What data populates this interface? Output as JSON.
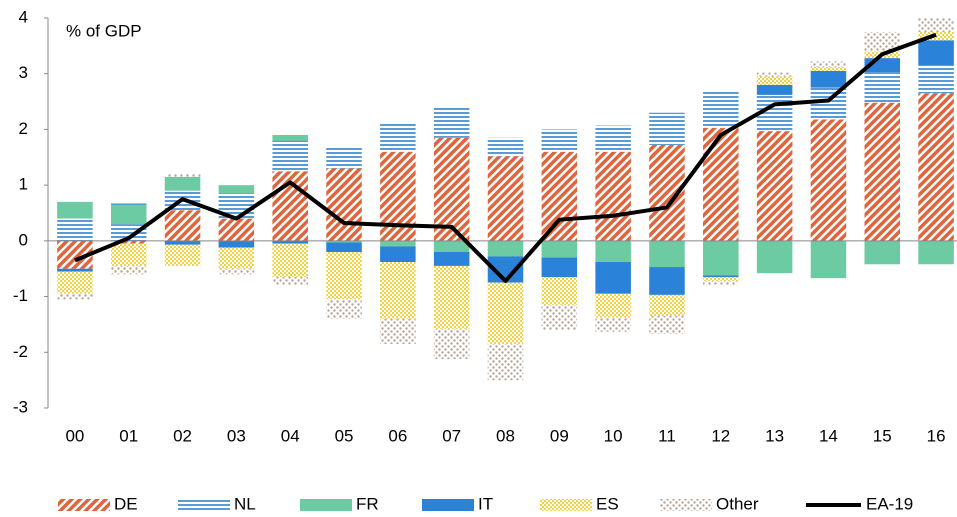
{
  "chart_data": {
    "type": "bar",
    "stacked": true,
    "y_label": "% of GDP",
    "categories": [
      "00",
      "01",
      "02",
      "03",
      "04",
      "05",
      "06",
      "07",
      "08",
      "09",
      "10",
      "11",
      "12",
      "13",
      "14",
      "15",
      "16"
    ],
    "ylim": [
      -3,
      4
    ],
    "yticks": [
      -3,
      -2,
      -1,
      0,
      1,
      2,
      3,
      4
    ],
    "grid": false,
    "series": [
      {
        "name": "DE",
        "color": "#e0643c",
        "pattern": "diagonal",
        "values": [
          -0.5,
          -0.05,
          0.55,
          0.4,
          1.25,
          1.3,
          1.6,
          1.85,
          1.52,
          1.6,
          1.6,
          1.72,
          2.03,
          1.97,
          2.18,
          2.48,
          2.65
        ]
      },
      {
        "name": "NL",
        "color": "#5b9bd5",
        "pattern": "horizontal",
        "values": [
          0.4,
          0.3,
          0.35,
          0.45,
          0.55,
          0.4,
          0.5,
          0.55,
          0.33,
          0.4,
          0.47,
          0.58,
          0.65,
          0.65,
          0.57,
          0.55,
          0.5
        ]
      },
      {
        "name": "FR",
        "color": "#6ccba2",
        "pattern": "solid",
        "values": [
          0.3,
          0.35,
          0.25,
          0.15,
          0.1,
          -0.03,
          -0.1,
          -0.2,
          -0.28,
          -0.3,
          -0.38,
          -0.47,
          -0.62,
          -0.58,
          -0.67,
          -0.42,
          -0.42
        ]
      },
      {
        "name": "IT",
        "color": "#2b82d9",
        "pattern": "solid",
        "values": [
          -0.05,
          0.02,
          -0.07,
          -0.12,
          -0.05,
          -0.17,
          -0.28,
          -0.25,
          -0.47,
          -0.35,
          -0.57,
          -0.5,
          -0.03,
          0.18,
          0.3,
          0.25,
          0.45
        ]
      },
      {
        "name": "ES",
        "color": "#f7d23e",
        "pattern": "checker",
        "values": [
          -0.4,
          -0.4,
          -0.38,
          -0.38,
          -0.6,
          -0.85,
          -1.02,
          -1.13,
          -1.1,
          -0.5,
          -0.43,
          -0.38,
          -0.07,
          0.15,
          0.07,
          0.12,
          0.15
        ]
      },
      {
        "name": "Other",
        "color": "#b5a498",
        "pattern": "dots",
        "values": [
          -0.1,
          -0.15,
          0.05,
          -0.1,
          -0.15,
          -0.35,
          -0.45,
          -0.54,
          -0.65,
          -0.45,
          -0.25,
          -0.32,
          -0.08,
          0.07,
          0.1,
          0.35,
          0.25
        ]
      },
      {
        "name": "EA-19",
        "color": "#000000",
        "type": "line",
        "values": [
          -0.35,
          0.05,
          0.75,
          0.4,
          1.05,
          0.32,
          0.28,
          0.25,
          -0.72,
          0.38,
          0.45,
          0.6,
          1.9,
          2.45,
          2.52,
          3.35,
          3.7
        ]
      }
    ]
  }
}
